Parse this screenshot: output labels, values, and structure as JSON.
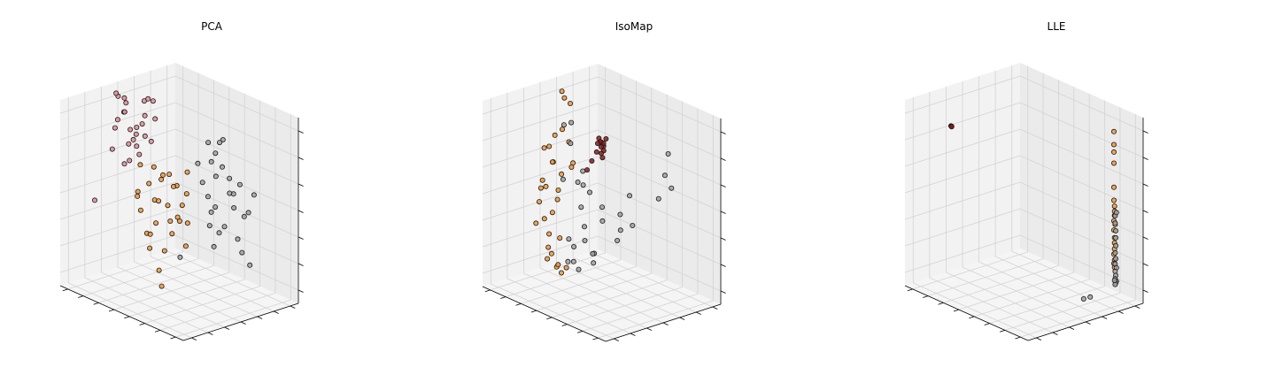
{
  "figure": {
    "background": "#ffffff"
  },
  "palette": {
    "pane_back": "#ebebeb",
    "pane_side": "#f2f2f2",
    "pane_floor": "#f5f5f5",
    "grid": "#d3d3d3",
    "edge": "#000000",
    "colors": {
      "pink": "#e08a96",
      "orange": "#f0953a",
      "gray": "#a0a0a0",
      "darkred": "#8b1a1a"
    }
  },
  "chart_data": [
    {
      "type": "scatter3d",
      "title": "PCA",
      "grid": true,
      "ticks_x": 8,
      "ticks_y": 7,
      "ticks_z": 7,
      "clusters": [
        {
          "color": "pink",
          "points": [
            [
              0.05,
              0.5,
              0.85
            ],
            [
              0.1,
              0.45,
              0.95
            ],
            [
              0.08,
              0.55,
              0.7
            ],
            [
              0.15,
              0.4,
              0.9
            ],
            [
              0.12,
              0.48,
              0.78
            ],
            [
              0.18,
              0.52,
              0.82
            ],
            [
              0.06,
              0.6,
              0.75
            ],
            [
              0.2,
              0.45,
              0.72
            ],
            [
              0.03,
              0.42,
              0.66
            ],
            [
              0.14,
              0.58,
              0.92
            ],
            [
              0.22,
              0.5,
              0.88
            ],
            [
              0.09,
              0.38,
              0.8
            ],
            [
              0.16,
              0.62,
              0.7
            ],
            [
              0.11,
              0.44,
              0.6
            ],
            [
              0.19,
              0.56,
              0.95
            ],
            [
              0.07,
              0.52,
              0.68
            ],
            [
              0.13,
              0.36,
              0.86
            ],
            [
              0.24,
              0.48,
              0.78
            ],
            [
              0.02,
              0.55,
              0.88
            ],
            [
              0.17,
              0.42,
              0.64
            ],
            [
              0.21,
              0.6,
              0.84
            ],
            [
              0.04,
              0.46,
              0.94
            ],
            [
              0.25,
              0.54,
              0.96
            ],
            [
              0.1,
              0.58,
              0.62
            ],
            [
              0.15,
              0.5,
              0.76
            ],
            [
              0.08,
              0.4,
              0.98
            ],
            [
              0.0,
              0.3,
              0.4
            ]
          ]
        },
        {
          "color": "orange",
          "points": [
            [
              0.35,
              0.3,
              0.55
            ],
            [
              0.4,
              0.45,
              0.6
            ],
            [
              0.3,
              0.5,
              0.45
            ],
            [
              0.45,
              0.35,
              0.4
            ],
            [
              0.5,
              0.4,
              0.5
            ],
            [
              0.38,
              0.55,
              0.35
            ],
            [
              0.42,
              0.25,
              0.48
            ],
            [
              0.48,
              0.5,
              0.58
            ],
            [
              0.33,
              0.4,
              0.3
            ],
            [
              0.55,
              0.45,
              0.42
            ],
            [
              0.36,
              0.6,
              0.52
            ],
            [
              0.44,
              0.3,
              0.62
            ],
            [
              0.52,
              0.55,
              0.38
            ],
            [
              0.4,
              0.35,
              0.25
            ],
            [
              0.46,
              0.48,
              0.32
            ],
            [
              0.34,
              0.45,
              0.65
            ],
            [
              0.5,
              0.32,
              0.54
            ],
            [
              0.58,
              0.4,
              0.46
            ],
            [
              0.38,
              0.5,
              0.2
            ],
            [
              0.43,
              0.6,
              0.44
            ],
            [
              0.3,
              0.35,
              0.5
            ],
            [
              0.56,
              0.5,
              0.56
            ],
            [
              0.47,
              0.28,
              0.36
            ],
            [
              0.41,
              0.42,
              0.12
            ],
            [
              0.6,
              0.45,
              0.3
            ],
            [
              0.37,
              0.3,
              0.7
            ],
            [
              0.53,
              0.38,
              0.68
            ],
            [
              0.49,
              0.58,
              0.64
            ],
            [
              0.32,
              0.55,
              0.58
            ],
            [
              0.45,
              0.4,
              0.05
            ]
          ]
        },
        {
          "color": "gray",
          "points": [
            [
              0.7,
              0.6,
              0.8
            ],
            [
              0.75,
              0.55,
              0.7
            ],
            [
              0.8,
              0.65,
              0.6
            ],
            [
              0.65,
              0.5,
              0.75
            ],
            [
              0.85,
              0.6,
              0.55
            ],
            [
              0.72,
              0.7,
              0.65
            ],
            [
              0.78,
              0.45,
              0.62
            ],
            [
              0.68,
              0.62,
              0.5
            ],
            [
              0.82,
              0.55,
              0.45
            ],
            [
              0.74,
              0.68,
              0.58
            ],
            [
              0.88,
              0.62,
              0.68
            ],
            [
              0.66,
              0.58,
              0.85
            ],
            [
              0.76,
              0.5,
              0.52
            ],
            [
              0.84,
              0.7,
              0.48
            ],
            [
              0.7,
              0.55,
              0.42
            ],
            [
              0.9,
              0.58,
              0.4
            ],
            [
              0.62,
              0.65,
              0.72
            ],
            [
              0.8,
              0.48,
              0.35
            ],
            [
              0.86,
              0.66,
              0.3
            ],
            [
              0.73,
              0.6,
              0.38
            ],
            [
              0.95,
              0.62,
              0.55
            ],
            [
              0.67,
              0.52,
              0.65
            ],
            [
              0.92,
              0.7,
              0.62
            ],
            [
              0.78,
              0.58,
              0.9
            ],
            [
              0.83,
              0.52,
              0.78
            ],
            [
              0.6,
              0.4,
              0.25
            ],
            [
              0.98,
              0.6,
              0.28
            ],
            [
              0.64,
              0.7,
              0.82
            ]
          ]
        }
      ]
    },
    {
      "type": "scatter3d",
      "title": "IsoMap",
      "grid": true,
      "ticks_x": 8,
      "ticks_y": 7,
      "ticks_z": 7,
      "clusters": [
        {
          "color": "orange",
          "points": [
            [
              0.15,
              0.55,
              0.95
            ],
            [
              0.18,
              0.5,
              0.8
            ],
            [
              0.12,
              0.45,
              0.7
            ],
            [
              0.2,
              0.4,
              0.65
            ],
            [
              0.1,
              0.5,
              0.6
            ],
            [
              0.16,
              0.35,
              0.55
            ],
            [
              0.22,
              0.55,
              0.62
            ],
            [
              0.14,
              0.4,
              0.5
            ],
            [
              0.18,
              0.3,
              0.45
            ],
            [
              0.24,
              0.35,
              0.4
            ],
            [
              0.2,
              0.25,
              0.35
            ],
            [
              0.26,
              0.3,
              0.3
            ],
            [
              0.3,
              0.25,
              0.25
            ],
            [
              0.28,
              0.3,
              0.2
            ],
            [
              0.34,
              0.28,
              0.15
            ],
            [
              0.32,
              0.22,
              0.2
            ],
            [
              0.38,
              0.25,
              0.18
            ],
            [
              0.36,
              0.3,
              0.12
            ],
            [
              0.3,
              0.35,
              0.28
            ],
            [
              0.12,
              0.5,
              0.75
            ],
            [
              0.08,
              0.45,
              0.68
            ],
            [
              0.14,
              0.6,
              0.7
            ],
            [
              0.22,
              0.45,
              0.58
            ],
            [
              0.1,
              0.4,
              0.48
            ],
            [
              0.26,
              0.38,
              0.52
            ],
            [
              0.18,
              0.58,
              0.58
            ],
            [
              0.16,
              0.48,
              0.42
            ],
            [
              0.24,
              0.28,
              0.38
            ],
            [
              0.4,
              0.3,
              0.16
            ],
            [
              0.13,
              0.55,
              0.98
            ],
            [
              0.17,
              0.58,
              0.92
            ]
          ]
        },
        {
          "color": "darkred",
          "points": [
            [
              0.45,
              0.55,
              0.8
            ],
            [
              0.46,
              0.56,
              0.78
            ],
            [
              0.44,
              0.54,
              0.82
            ],
            [
              0.47,
              0.55,
              0.76
            ],
            [
              0.45,
              0.57,
              0.79
            ],
            [
              0.46,
              0.53,
              0.81
            ],
            [
              0.44,
              0.56,
              0.77
            ],
            [
              0.45,
              0.55,
              0.74
            ],
            [
              0.43,
              0.54,
              0.79
            ],
            [
              0.47,
              0.57,
              0.82
            ],
            [
              0.44,
              0.52,
              0.75
            ],
            [
              0.46,
              0.55,
              0.72
            ],
            [
              0.42,
              0.5,
              0.7
            ],
            [
              0.4,
              0.48,
              0.65
            ]
          ]
        },
        {
          "color": "gray",
          "points": [
            [
              0.1,
              0.6,
              0.78
            ],
            [
              0.14,
              0.62,
              0.8
            ],
            [
              0.2,
              0.55,
              0.72
            ],
            [
              0.4,
              0.4,
              0.6
            ],
            [
              0.45,
              0.45,
              0.55
            ],
            [
              0.55,
              0.45,
              0.5
            ],
            [
              0.6,
              0.4,
              0.45
            ],
            [
              0.5,
              0.35,
              0.4
            ],
            [
              0.55,
              0.3,
              0.35
            ],
            [
              0.48,
              0.28,
              0.3
            ],
            [
              0.42,
              0.3,
              0.32
            ],
            [
              0.65,
              0.5,
              0.48
            ],
            [
              0.7,
              0.45,
              0.42
            ],
            [
              0.75,
              0.5,
              0.45
            ],
            [
              0.58,
              0.35,
              0.28
            ],
            [
              0.62,
              0.3,
              0.25
            ],
            [
              0.52,
              0.4,
              0.25
            ],
            [
              0.46,
              0.25,
              0.22
            ],
            [
              0.44,
              0.32,
              0.2
            ],
            [
              0.5,
              0.3,
              0.18
            ],
            [
              0.9,
              0.65,
              0.85
            ],
            [
              0.92,
              0.6,
              0.75
            ],
            [
              0.88,
              0.7,
              0.65
            ],
            [
              0.85,
              0.62,
              0.6
            ],
            [
              0.68,
              0.55,
              0.58
            ],
            [
              0.35,
              0.5,
              0.55
            ],
            [
              0.3,
              0.55,
              0.6
            ],
            [
              0.72,
              0.4,
              0.38
            ],
            [
              0.38,
              0.45,
              0.45
            ],
            [
              0.28,
              0.4,
              0.58
            ]
          ]
        }
      ]
    },
    {
      "type": "scatter3d",
      "title": "LLE",
      "grid": true,
      "ticks_x": 8,
      "ticks_y": 7,
      "ticks_z": 7,
      "clusters": [
        {
          "color": "darkred",
          "points": [
            [
              0.0,
              0.4,
              0.78
            ],
            [
              0.005,
              0.4,
              0.78
            ],
            [
              0.0,
              0.405,
              0.775
            ]
          ]
        },
        {
          "color": "orange",
          "points": [
            [
              0.95,
              0.8,
              0.95
            ],
            [
              0.95,
              0.8,
              0.88
            ],
            [
              0.95,
              0.8,
              0.84
            ],
            [
              0.95,
              0.8,
              0.78
            ],
            [
              0.95,
              0.8,
              0.65
            ],
            [
              0.95,
              0.8,
              0.58
            ],
            [
              0.955,
              0.8,
              0.55
            ],
            [
              0.95,
              0.805,
              0.52
            ],
            [
              0.955,
              0.8,
              0.5
            ],
            [
              0.95,
              0.8,
              0.47
            ],
            [
              0.955,
              0.805,
              0.45
            ],
            [
              0.95,
              0.8,
              0.42
            ],
            [
              0.955,
              0.8,
              0.38
            ],
            [
              0.95,
              0.805,
              0.35
            ],
            [
              0.955,
              0.8,
              0.32
            ],
            [
              0.95,
              0.8,
              0.29
            ],
            [
              0.955,
              0.8,
              0.26
            ],
            [
              0.95,
              0.8,
              0.24
            ],
            [
              0.955,
              0.8,
              0.22
            ]
          ]
        },
        {
          "color": "gray",
          "points": [
            [
              0.96,
              0.8,
              0.5
            ],
            [
              0.96,
              0.8,
              0.46
            ],
            [
              0.965,
              0.8,
              0.42
            ],
            [
              0.96,
              0.805,
              0.38
            ],
            [
              0.965,
              0.8,
              0.34
            ],
            [
              0.96,
              0.8,
              0.3
            ],
            [
              0.965,
              0.8,
              0.27
            ],
            [
              0.96,
              0.8,
              0.24
            ],
            [
              0.965,
              0.805,
              0.22
            ],
            [
              0.96,
              0.8,
              0.2
            ],
            [
              0.965,
              0.8,
              0.18
            ],
            [
              0.96,
              0.8,
              0.16
            ],
            [
              0.97,
              0.8,
              0.15
            ],
            [
              0.965,
              0.8,
              0.14
            ],
            [
              0.96,
              0.8,
              0.13
            ],
            [
              0.97,
              0.8,
              0.52
            ],
            [
              0.955,
              0.8,
              0.15
            ],
            [
              0.85,
              0.7,
              0.05
            ],
            [
              0.75,
              0.75,
              0.0
            ]
          ]
        }
      ]
    }
  ]
}
